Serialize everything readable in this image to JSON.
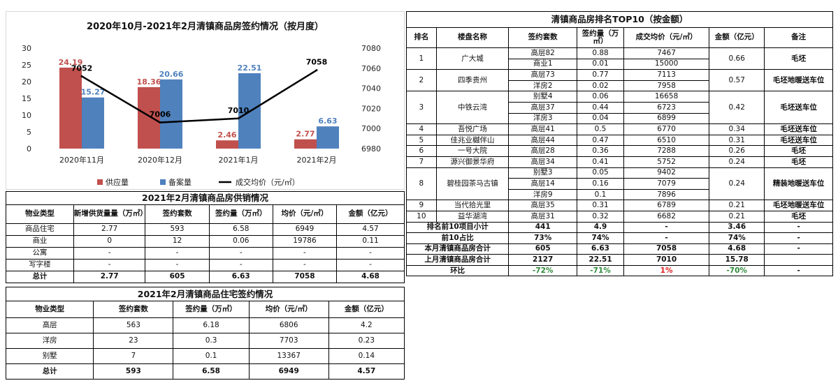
{
  "chart_data": {
    "type": "bar",
    "title": "2020年10月-2021年2月清镇商品房签约情况（按月度）",
    "categories": [
      "2020年11月",
      "2020年12月",
      "2021年1月",
      "2021年2月"
    ],
    "series": [
      {
        "name": "供应量",
        "kind": "bar",
        "values": [
          24.19,
          18.36,
          2.46,
          2.77
        ],
        "color": "#c0504d"
      },
      {
        "name": "备案量",
        "kind": "bar",
        "values": [
          15.27,
          20.66,
          22.51,
          6.63
        ],
        "color": "#4f81bd"
      },
      {
        "name": "成交均价（元/㎡）",
        "kind": "line",
        "axis": "right",
        "values": [
          7052,
          7006,
          7010,
          7058
        ],
        "color": "#000000"
      }
    ],
    "ylim_left": [
      0,
      30
    ],
    "ylim_right": [
      6980,
      7080
    ],
    "yticks_left": [
      "0",
      "5",
      "10",
      "15",
      "20",
      "25",
      "30"
    ],
    "yticks_right": [
      "6980",
      "7000",
      "7020",
      "7040",
      "7060",
      "7080"
    ],
    "legend_position": "bottom",
    "grid": false
  },
  "supply_table": {
    "title": "2021年2月清镇商品房供销情况",
    "headers": [
      "物业类型",
      "新增供货量量（万㎡）",
      "签约套数",
      "签约量（万㎡）",
      "均价（元/㎡）",
      "金额（亿元）"
    ],
    "rows": [
      [
        "商品住宅",
        "2.77",
        "593",
        "6.58",
        "6949",
        "4.57"
      ],
      [
        "商业",
        "0",
        "12",
        "0.06",
        "19786",
        "0.11"
      ],
      [
        "公寓",
        "-",
        "-",
        "-",
        "-",
        "-"
      ],
      [
        "写字楼",
        "-",
        "-",
        "-",
        "-",
        "-"
      ]
    ],
    "total": [
      "总计",
      "2.77",
      "605",
      "6.63",
      "7058",
      "4.68"
    ]
  },
  "resi_table": {
    "title": "2021年2月清镇商品住宅签约情况",
    "headers": [
      "物业类型",
      "签约套数",
      "签约量（万㎡）",
      "均价（元/㎡）",
      "金额（亿元）"
    ],
    "rows": [
      [
        "高层",
        "563",
        "6.18",
        "6806",
        "4.2"
      ],
      [
        "洋房",
        "23",
        "0.3",
        "7703",
        "0.23"
      ],
      [
        "别墅",
        "7",
        "0.1",
        "13367",
        "0.14"
      ]
    ],
    "total": [
      "总计",
      "593",
      "6.58",
      "6949",
      "4.57"
    ]
  },
  "top10": {
    "title": "清镇商品房排名TOP10（按金额）",
    "headers": [
      "排名",
      "楼盘名称",
      "签约套数",
      "签约量（万㎡）",
      "成交均价（元/㎡）",
      "金额（亿元）",
      "备注"
    ],
    "groups": [
      {
        "rank": "1",
        "name": "广大城",
        "amount": "0.66",
        "note": "毛坯",
        "rows": [
          [
            "高层82",
            "0.88",
            "7467"
          ],
          [
            "商业1",
            "0.01",
            "15000"
          ]
        ]
      },
      {
        "rank": "2",
        "name": "四季贵州",
        "amount": "0.57",
        "note": "毛坯地暖送车位",
        "rows": [
          [
            "高层73",
            "0.77",
            "7113"
          ],
          [
            "洋房2",
            "0.02",
            "7958"
          ]
        ]
      },
      {
        "rank": "3",
        "name": "中铁云湾",
        "amount": "0.42",
        "note": "毛坯送车位",
        "rows": [
          [
            "别墅4",
            "0.06",
            "16658"
          ],
          [
            "高层37",
            "0.44",
            "6723"
          ],
          [
            "洋房3",
            "0.04",
            "6899"
          ]
        ]
      },
      {
        "rank": "4",
        "name": "吾悦广场",
        "amount": "0.34",
        "note": "毛坯送车位",
        "rows": [
          [
            "高层41",
            "0.5",
            "6770"
          ]
        ]
      },
      {
        "rank": "5",
        "name": "佳兆业樾伴山",
        "amount": "0.31",
        "note": "毛坯送车位",
        "rows": [
          [
            "高层44",
            "0.47",
            "6510"
          ]
        ]
      },
      {
        "rank": "6",
        "name": "一号大院",
        "amount": "0.26",
        "note": "毛坯",
        "rows": [
          [
            "高层28",
            "0.36",
            "7288"
          ]
        ]
      },
      {
        "rank": "7",
        "name": "源兴御景华府",
        "amount": "0.24",
        "note": "毛坯",
        "rows": [
          [
            "高层34",
            "0.41",
            "5752"
          ]
        ]
      },
      {
        "rank": "8",
        "name": "碧桂园茶马古镇",
        "amount": "0.24",
        "note": "精装地暖送车位",
        "rows": [
          [
            "别墅3",
            "0.05",
            "9402"
          ],
          [
            "高层14",
            "0.16",
            "7079"
          ],
          [
            "洋房9",
            "0.1",
            "7896"
          ]
        ]
      },
      {
        "rank": "9",
        "name": "当代拾光里",
        "amount": "0.21",
        "note": "毛坯地暖送车位",
        "rows": [
          [
            "高层35",
            "0.31",
            "6789"
          ]
        ]
      },
      {
        "rank": "10",
        "name": "益华湖湾",
        "amount": "0.21",
        "note": "毛坯",
        "rows": [
          [
            "高层31",
            "0.32",
            "6682"
          ]
        ]
      }
    ],
    "summary": [
      {
        "label": "排名前10项目小计",
        "units": "441",
        "area": "4.9",
        "price": "-",
        "amount": "3.46",
        "note": "-"
      },
      {
        "label": "前10占比",
        "units": "73%",
        "area": "74%",
        "price": "-",
        "amount": "74%",
        "note": "-"
      },
      {
        "label": "本月清镇商品房合计",
        "units": "605",
        "area": "6.63",
        "price": "7058",
        "amount": "4.68",
        "note": "-"
      },
      {
        "label": "上月清镇商品房合计",
        "units": "2127",
        "area": "22.51",
        "price": "7010",
        "amount": "15.78",
        "note": ""
      },
      {
        "label": "环比",
        "units": "-72%",
        "area": "-71%",
        "price": "1%",
        "amount": "-70%",
        "note": "-"
      }
    ]
  }
}
